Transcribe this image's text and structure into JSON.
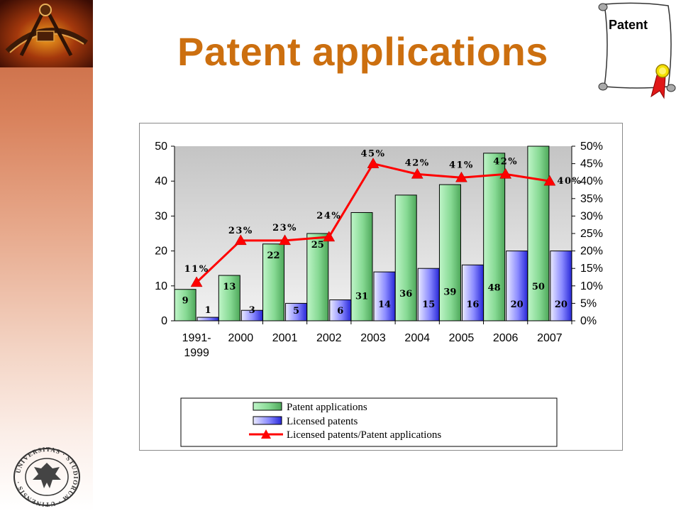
{
  "slide": {
    "title": "Patent applications",
    "badge": "Patent"
  },
  "colors": {
    "title": "#cc6f0f",
    "bar_applications": "#8fdc9c",
    "bar_licensed": "#8f8fff",
    "line_ratio": "#ff0000",
    "plot_bg": "#cfcfcf"
  },
  "chart_data": {
    "type": "bar",
    "categories": [
      [
        "1991-",
        "1999"
      ],
      [
        "2000"
      ],
      [
        "2001"
      ],
      [
        "2002"
      ],
      [
        "2003"
      ],
      [
        "2004"
      ],
      [
        "2005"
      ],
      [
        "2006"
      ],
      [
        "2007"
      ]
    ],
    "series": [
      {
        "name": "Patent applications",
        "type": "bar",
        "axis": "left",
        "values": [
          9,
          13,
          22,
          25,
          31,
          36,
          39,
          48,
          50
        ],
        "labels": [
          "9",
          "13",
          "22",
          "25",
          "31",
          "36",
          "39",
          "48",
          "50"
        ]
      },
      {
        "name": "Licensed patents",
        "type": "bar",
        "axis": "left",
        "values": [
          1,
          3,
          5,
          6,
          14,
          15,
          16,
          20,
          20
        ],
        "labels": [
          "1",
          "3",
          "5",
          "6",
          "14",
          "15",
          "16",
          "20",
          "20"
        ]
      },
      {
        "name": "Licensed patents/Patent applications",
        "type": "line",
        "axis": "right",
        "marker": "triangle",
        "values": [
          11,
          23,
          23,
          24,
          45,
          42,
          41,
          42,
          40
        ],
        "labels": [
          "11%",
          "23%",
          "23%",
          "24%",
          "45%",
          "42%",
          "41%",
          "42%",
          "40%"
        ]
      }
    ],
    "y_left": {
      "ylim": [
        0,
        50
      ],
      "ticks": [
        "0",
        "10",
        "20",
        "30",
        "40",
        "50"
      ]
    },
    "y_right": {
      "ylim": [
        0,
        50
      ],
      "ticks": [
        "0%",
        "5%",
        "10%",
        "15%",
        "20%",
        "25%",
        "30%",
        "35%",
        "40%",
        "45%",
        "50%"
      ]
    },
    "grid": false,
    "legend_position": "bottom"
  }
}
